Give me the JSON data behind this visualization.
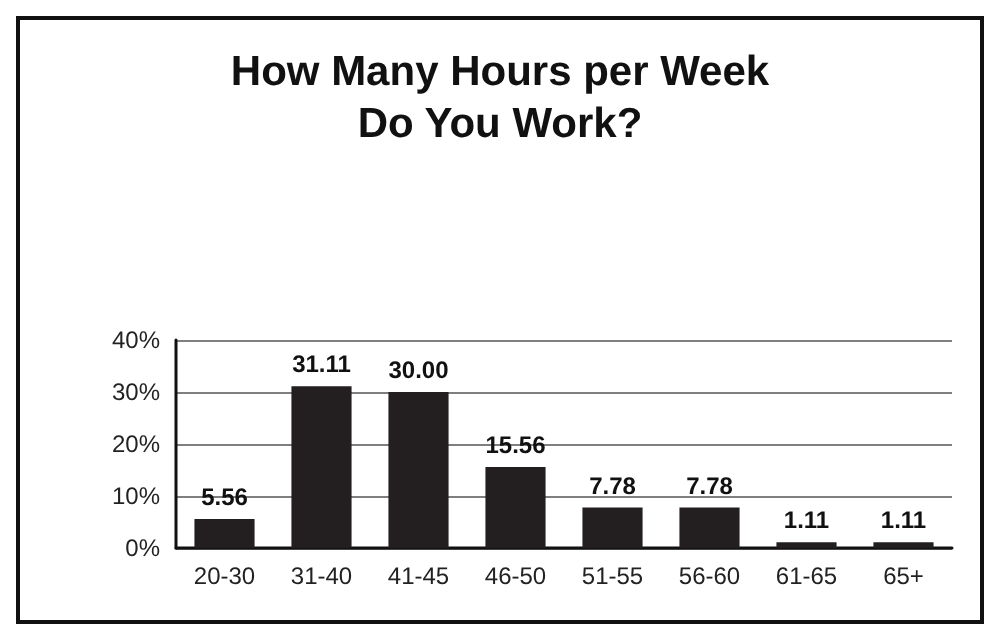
{
  "chart_data": {
    "type": "bar",
    "title": "How Many Hours per Week\nDo You Work?",
    "categories": [
      "20-30",
      "31-40",
      "41-45",
      "46-50",
      "51-55",
      "56-60",
      "61-65",
      "65+"
    ],
    "values": [
      5.56,
      31.11,
      30.0,
      15.56,
      7.78,
      7.78,
      1.11,
      1.11
    ],
    "value_labels": [
      "5.56",
      "31.11",
      "30.00",
      "15.56",
      "7.78",
      "7.78",
      "1.11",
      "1.11"
    ],
    "color": "#231f20",
    "ylim": [
      0,
      40
    ],
    "yticks": [
      {
        "value": 0,
        "label": "0%"
      },
      {
        "value": 10,
        "label": "10%"
      },
      {
        "value": 20,
        "label": "20%"
      },
      {
        "value": 30,
        "label": "30%"
      },
      {
        "value": 40,
        "label": "40%"
      }
    ],
    "grid": "y"
  }
}
